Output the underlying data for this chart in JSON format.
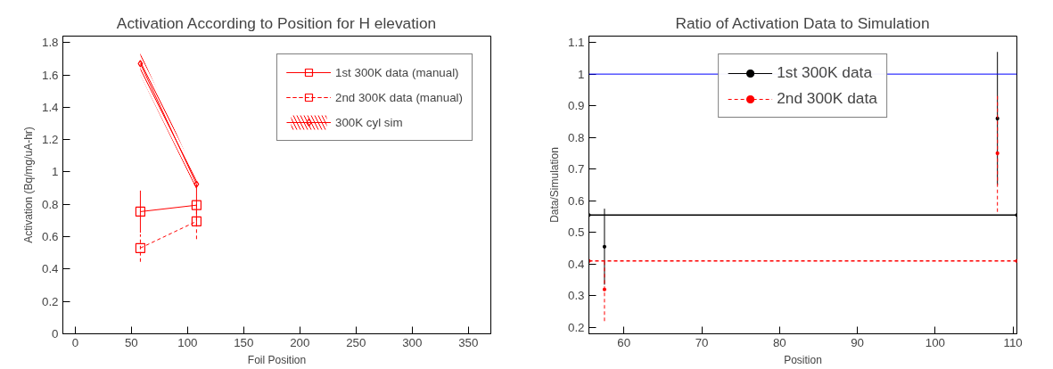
{
  "chart_data": [
    {
      "type": "line",
      "title": "Activation According to Position for H elevation",
      "xlabel": "Foil Position",
      "ylabel": "Activation (Bq/mg/uA-hr)",
      "x": [
        58,
        108
      ],
      "xlim": [
        -11,
        370
      ],
      "xticks": [
        0,
        50,
        100,
        150,
        200,
        250,
        300,
        350
      ],
      "ylim": [
        0,
        1.84
      ],
      "yticks": [
        0,
        0.2,
        0.4,
        0.6,
        0.8,
        {
          "value": 1,
          "label": "1"
        },
        1.2,
        1.4,
        1.6,
        1.8
      ],
      "grid": false,
      "legend": "top right",
      "series": [
        {
          "name": "1st 300K data (manual)",
          "color": "#ff0000",
          "values": [
            0.755,
            0.795
          ],
          "errors": [
            0.13,
            0.13
          ],
          "marker": "square",
          "line_style": "solid"
        },
        {
          "name": "2nd 300K data (manual)",
          "color": "#ff0000",
          "values": [
            0.53,
            0.695
          ],
          "errors": [
            0.085,
            0.11
          ],
          "marker": "square",
          "line_style": "dashed"
        },
        {
          "name": "300K cyl sim",
          "color": "#ff0000",
          "values": [
            1.67,
            0.925
          ],
          "lower": [
            1.6,
            0.89
          ],
          "upper": [
            1.74,
            0.96
          ],
          "marker": "diamond",
          "line_style": "solid"
        }
      ]
    },
    {
      "type": "scatter",
      "title": "Ratio of Activation Data to Simulation",
      "xlabel": "Position",
      "ylabel": "Data/Simulation",
      "xlim": [
        55.5,
        110.5
      ],
      "xticks": [
        60,
        70,
        80,
        90,
        100,
        110
      ],
      "ylim": [
        0.18,
        1.12
      ],
      "yticks": [
        0.2,
        0.3,
        0.4,
        0.5,
        0.6,
        0.7,
        0.8,
        0.9,
        {
          "value": 1,
          "label": "1"
        },
        1.1
      ],
      "grid": false,
      "legend": "top",
      "marker": "circle",
      "ref_lines": [
        {
          "axis": "y",
          "value": 1,
          "color": "#0000ff"
        }
      ],
      "series": [
        {
          "name": "1st 300K data",
          "color": "#000000",
          "x": [
            57.5,
            108
          ],
          "values": [
            0.455,
            0.86
          ],
          "errors": [
            [
              0.335,
              0.575
            ],
            [
              0.65,
              1.07
            ]
          ],
          "line_style": "solid"
        },
        {
          "name": "2nd 300K data",
          "color": "#ff0000",
          "x": [
            57.5,
            108
          ],
          "values": [
            0.32,
            0.75
          ],
          "errors": [
            [
              0.22,
              0.415
            ],
            [
              0.565,
              0.935
            ]
          ],
          "line_style": "dashed"
        },
        {
          "type": "line",
          "color": "#000000",
          "x": [
            55.5,
            110.5
          ],
          "values": [
            0.555,
            0.555
          ],
          "line_style": "solid"
        },
        {
          "type": "line",
          "color": "#ff0000",
          "x": [
            55.5,
            110.5
          ],
          "values": [
            0.41,
            0.41
          ],
          "line_style": "dashed"
        }
      ]
    }
  ]
}
